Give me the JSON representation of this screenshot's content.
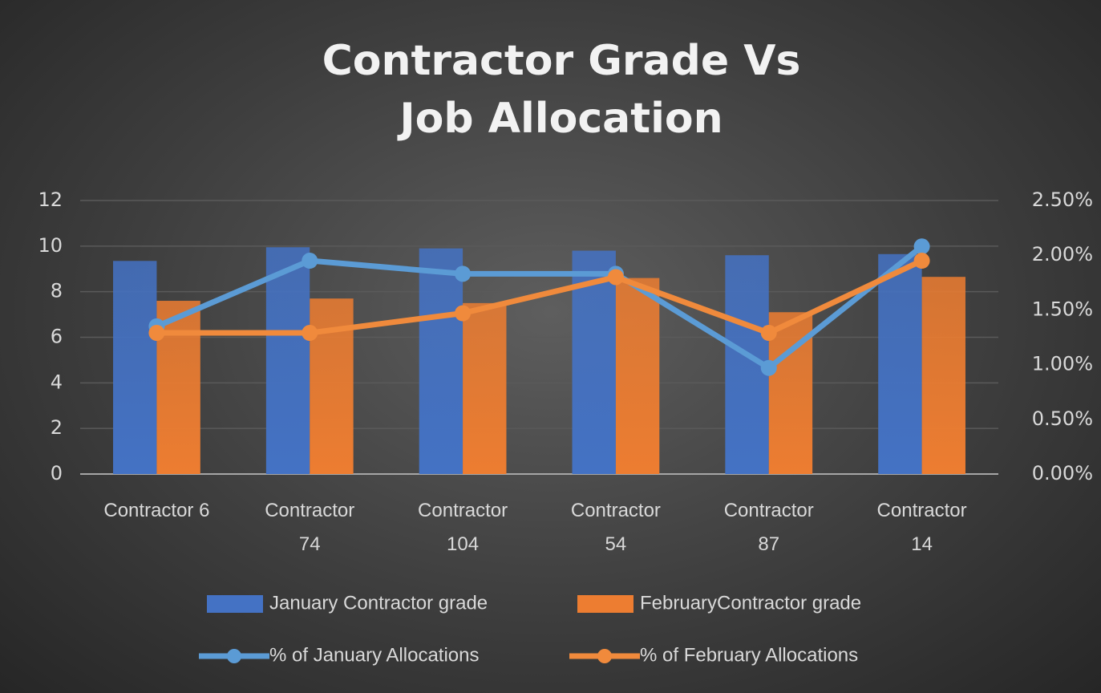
{
  "chart_data": {
    "type": "bar_line",
    "title": "Contractor Grade Vs Job Allocation",
    "categories": [
      "Contractor 6",
      "Contractor 74",
      "Contractor 104",
      "Contractor 54",
      "Contractor 87",
      "Contractor 14"
    ],
    "series": [
      {
        "name": "January Contractor grade",
        "kind": "bar",
        "color": "#4472c4",
        "values": [
          9.35,
          9.95,
          9.9,
          9.8,
          9.6,
          9.65
        ]
      },
      {
        "name": "FebruaryContractor grade",
        "kind": "bar",
        "color": "#ed7d31",
        "values": [
          7.6,
          7.7,
          7.5,
          8.6,
          7.1,
          8.65
        ]
      },
      {
        "name": "% of January Allocations",
        "kind": "line",
        "axis": "y2",
        "color": "#5b9bd5",
        "values": [
          1.35,
          1.95,
          1.83,
          1.83,
          0.97,
          2.08
        ]
      },
      {
        "name": "% of February Allocations",
        "kind": "line",
        "axis": "y2",
        "color": "#f08a3c",
        "values": [
          1.29,
          1.29,
          1.47,
          1.8,
          1.29,
          1.95
        ]
      }
    ],
    "ylim": [
      0,
      12
    ],
    "yticks": [
      0,
      2,
      4,
      6,
      8,
      10,
      12
    ],
    "y2lim": [
      0,
      2.5
    ],
    "y2ticks": [
      {
        "value": 0,
        "label": "0.00%"
      },
      {
        "value": 0.5,
        "label": "0.50%"
      },
      {
        "value": 1,
        "label": "1.00%"
      },
      {
        "value": 1.5,
        "label": "1.50%"
      },
      {
        "value": 2,
        "label": "2.00%"
      },
      {
        "value": 2.5,
        "label": "2.50%"
      }
    ],
    "grid": true,
    "legend": "bottom"
  }
}
